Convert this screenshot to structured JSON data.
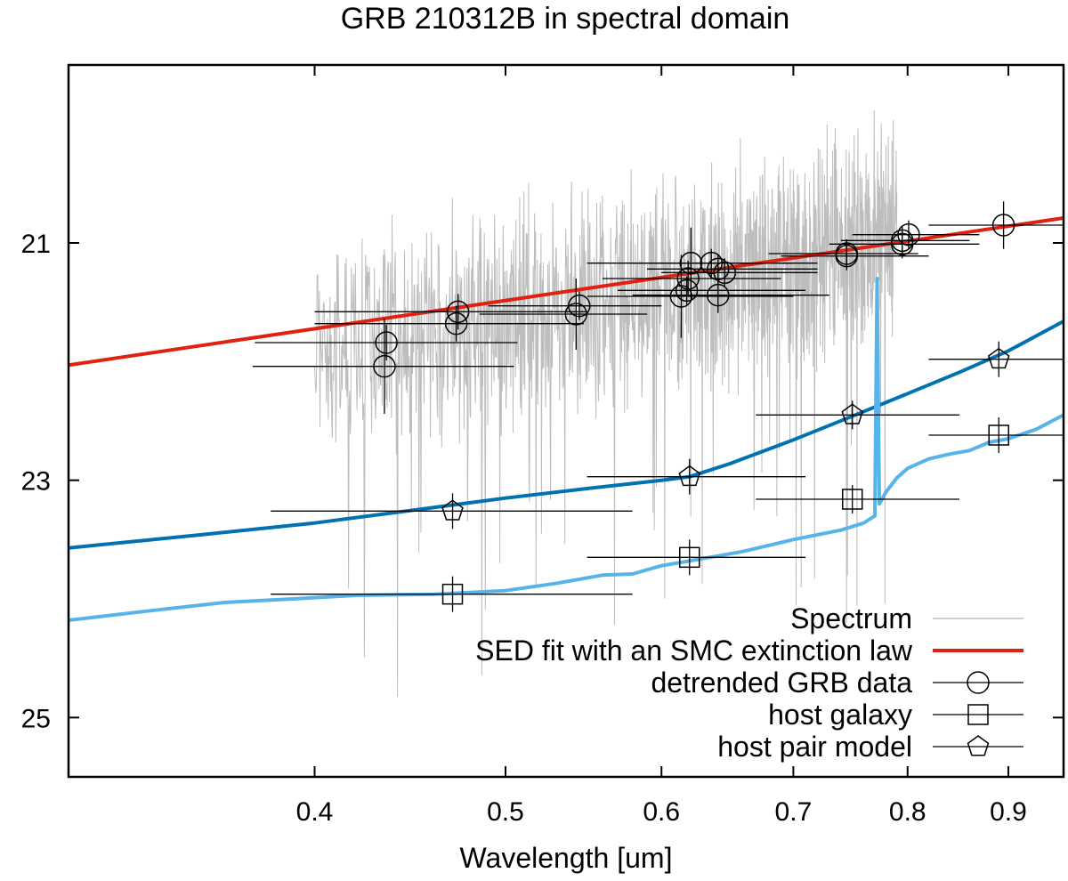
{
  "chart_data": {
    "type": "scatter",
    "title": "GRB 210312B in spectral domain",
    "xlabel": "Wavelength [um]",
    "ylabel": "",
    "xlim": [
      0.3,
      0.96
    ],
    "ylim": [
      25.5,
      19.5
    ],
    "x_log": true,
    "y_inverted": true,
    "grid": false,
    "legend_position": "bottom-right",
    "xticks": [
      {
        "value": 0.4,
        "label": "0.4"
      },
      {
        "value": 0.5,
        "label": "0.5"
      },
      {
        "value": 0.6,
        "label": "0.6"
      },
      {
        "value": 0.7,
        "label": "0.7"
      },
      {
        "value": 0.8,
        "label": "0.8"
      },
      {
        "value": 0.9,
        "label": "0.9"
      }
    ],
    "yticks": [
      {
        "value": 21,
        "label": "21"
      },
      {
        "value": 23,
        "label": "23"
      },
      {
        "value": 25,
        "label": "25"
      }
    ],
    "colors": {
      "spectrum": "#bdbdbd",
      "sed_fit": "#e02010",
      "host_template": "#56b4e9",
      "pair_model": "#0072b2",
      "marker": "#000000"
    },
    "legend": [
      {
        "label": "Spectrum",
        "kind": "line-thin",
        "color_key": "spectrum"
      },
      {
        "label": "SED fit with an SMC extinction law",
        "kind": "line-thick",
        "color_key": "sed_fit"
      },
      {
        "label": "detrended GRB data",
        "kind": "circle"
      },
      {
        "label": "host galaxy",
        "kind": "square"
      },
      {
        "label": "host pair model",
        "kind": "pentagon"
      }
    ],
    "spectrum_range": {
      "x_start": 0.4,
      "x_end": 0.79,
      "center_at_0_4": 21.85,
      "center_at_0_79": 20.95,
      "scatter": 0.7
    },
    "series": [
      {
        "name": "SED fit with an SMC extinction law",
        "type": "line",
        "x": [
          0.3,
          0.96
        ],
        "y": [
          22.03,
          20.79
        ]
      },
      {
        "name": "host pair model curve",
        "type": "line",
        "x": [
          0.3,
          0.35,
          0.4,
          0.45,
          0.5,
          0.55,
          0.6,
          0.62,
          0.65,
          0.7,
          0.75,
          0.8,
          0.85,
          0.9,
          0.96
        ],
        "y": [
          23.57,
          23.46,
          23.36,
          23.25,
          23.15,
          23.07,
          23.0,
          22.97,
          22.86,
          22.66,
          22.46,
          22.27,
          22.09,
          21.91,
          21.66
        ]
      },
      {
        "name": "host galaxy template",
        "type": "line",
        "x": [
          0.3,
          0.33,
          0.36,
          0.39,
          0.42,
          0.46,
          0.5,
          0.53,
          0.56,
          0.58,
          0.6,
          0.62,
          0.66,
          0.7,
          0.74,
          0.76,
          0.77,
          0.772,
          0.774,
          0.78,
          0.79,
          0.8,
          0.82,
          0.84,
          0.86,
          0.88,
          0.9,
          0.93,
          0.96
        ],
        "y": [
          24.18,
          24.1,
          24.03,
          24.0,
          23.97,
          23.96,
          23.93,
          23.87,
          23.8,
          23.79,
          23.72,
          23.68,
          23.6,
          23.5,
          23.42,
          23.36,
          23.3,
          21.3,
          23.2,
          23.1,
          22.98,
          22.9,
          22.82,
          22.78,
          22.75,
          22.68,
          22.65,
          22.57,
          22.45
        ]
      },
      {
        "name": "detrended GRB data",
        "type": "scatter",
        "marker": "circle",
        "points": [
          {
            "x": 0.435,
            "y": 21.84,
            "xerr": [
              0.373,
              0.507
            ],
            "yerr": 0.15
          },
          {
            "x": 0.434,
            "y": 22.04,
            "xerr": [
              0.372,
              0.505
            ],
            "yerr": 0.4
          },
          {
            "x": 0.473,
            "y": 21.58,
            "xerr": [
              0.4,
              0.55
            ],
            "yerr": 0.15
          },
          {
            "x": 0.472,
            "y": 21.68,
            "xerr": [
              0.4,
              0.548
            ],
            "yerr": 0.15
          },
          {
            "x": 0.545,
            "y": 21.53,
            "xerr": [
              0.49,
              0.6
            ],
            "yerr": 0.12
          },
          {
            "x": 0.543,
            "y": 21.6,
            "xerr": [
              0.485,
              0.59
            ],
            "yerr": 0.3
          },
          {
            "x": 0.621,
            "y": 21.17,
            "xerr": [
              0.55,
              0.7
            ],
            "yerr": 0.3
          },
          {
            "x": 0.619,
            "y": 21.3,
            "xerr": [
              0.56,
              0.69
            ],
            "yerr": 0.15
          },
          {
            "x": 0.614,
            "y": 21.45,
            "xerr": [
              0.55,
              0.7
            ],
            "yerr": 0.35
          },
          {
            "x": 0.618,
            "y": 21.4,
            "xerr": [
              0.57,
              0.71
            ],
            "yerr": 0.12
          },
          {
            "x": 0.636,
            "y": 21.17,
            "xerr": [
              0.58,
              0.72
            ],
            "yerr": 0.12
          },
          {
            "x": 0.641,
            "y": 21.22,
            "xerr": [
              0.59,
              0.72
            ],
            "yerr": 0.12
          },
          {
            "x": 0.646,
            "y": 21.25,
            "xerr": [
              0.6,
              0.72
            ],
            "yerr": 0.12
          },
          {
            "x": 0.641,
            "y": 21.44,
            "xerr": [
              0.58,
              0.73
            ],
            "yerr": 0.15
          },
          {
            "x": 0.745,
            "y": 21.09,
            "xerr": [
              0.68,
              0.81
            ],
            "yerr": 0.12
          },
          {
            "x": 0.745,
            "y": 21.11,
            "xerr": [
              0.69,
              0.82
            ],
            "yerr": 0.12
          },
          {
            "x": 0.795,
            "y": 20.98,
            "xerr": [
              0.74,
              0.86
            ],
            "yerr": 0.12
          },
          {
            "x": 0.801,
            "y": 20.93,
            "xerr": [
              0.75,
              0.87
            ],
            "yerr": 0.12
          },
          {
            "x": 0.795,
            "y": 21.01,
            "xerr": [
              0.73,
              0.87
            ],
            "yerr": 0.12
          },
          {
            "x": 0.895,
            "y": 20.85,
            "xerr": [
              0.82,
              0.96
            ],
            "yerr": 0.2
          }
        ]
      },
      {
        "name": "host galaxy",
        "type": "scatter",
        "marker": "square",
        "points": [
          {
            "x": 0.47,
            "y": 23.96,
            "xerr": [
              0.38,
              0.58
            ],
            "yerr": 0.15
          },
          {
            "x": 0.62,
            "y": 23.65,
            "xerr": [
              0.55,
              0.71
            ],
            "yerr": 0.15
          },
          {
            "x": 0.75,
            "y": 23.16,
            "xerr": [
              0.67,
              0.85
            ],
            "yerr": 0.12
          },
          {
            "x": 0.89,
            "y": 22.62,
            "xerr": [
              0.82,
              0.97
            ],
            "yerr": 0.15
          }
        ]
      },
      {
        "name": "host pair model",
        "type": "scatter",
        "marker": "pentagon",
        "points": [
          {
            "x": 0.47,
            "y": 23.26,
            "xerr": [
              0.38,
              0.58
            ],
            "yerr": 0.15
          },
          {
            "x": 0.62,
            "y": 22.97,
            "xerr": [
              0.55,
              0.71
            ],
            "yerr": 0.15
          },
          {
            "x": 0.75,
            "y": 22.45,
            "xerr": [
              0.67,
              0.85
            ],
            "yerr": 0.12
          },
          {
            "x": 0.89,
            "y": 21.98,
            "xerr": [
              0.82,
              0.97
            ],
            "yerr": 0.15
          }
        ]
      }
    ]
  }
}
